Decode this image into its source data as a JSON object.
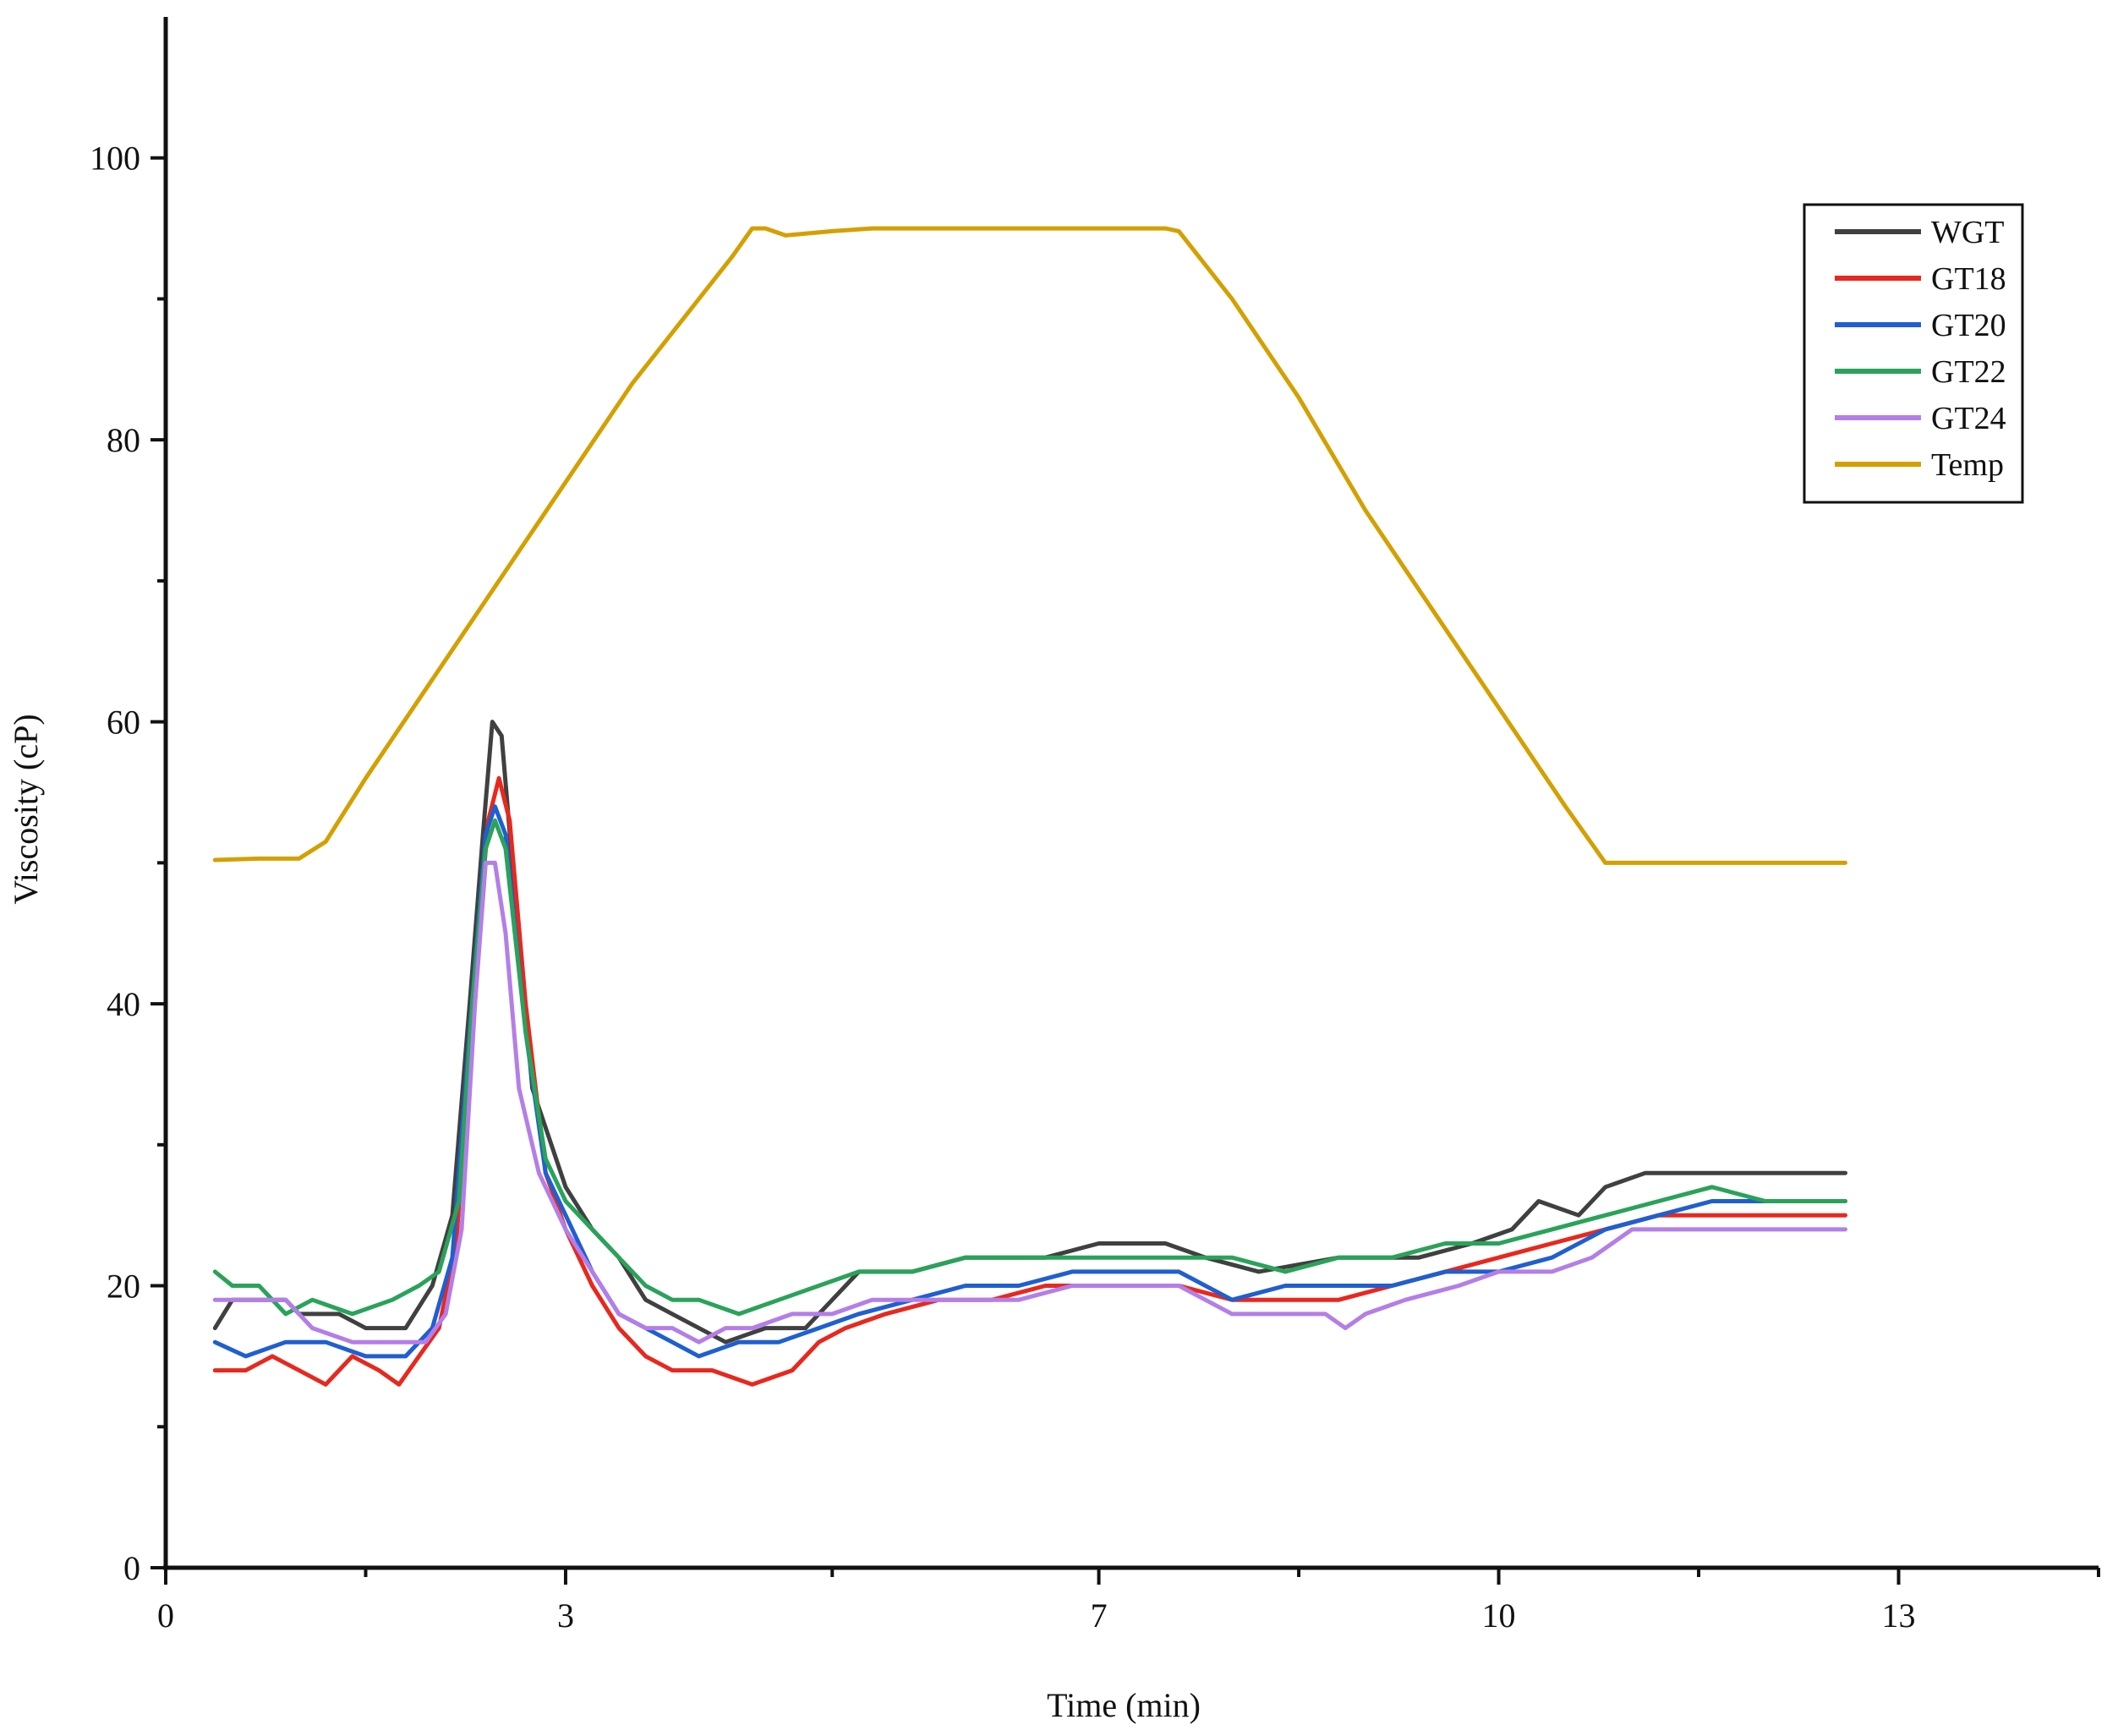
{
  "chart_data": {
    "type": "line",
    "xlabel": "Time (min)",
    "ylabel": "Viscosity (cP)",
    "xlim": [
      0,
      14.5
    ],
    "ylim": [
      0,
      110
    ],
    "x_ticks": [
      0,
      3,
      7,
      10,
      13
    ],
    "x_tick_labels": [
      "0",
      "3",
      "7",
      "10",
      "13"
    ],
    "y_ticks": [
      0,
      20,
      40,
      60,
      80,
      100
    ],
    "y_tick_labels": [
      "0",
      "20",
      "40",
      "60",
      "80",
      "100"
    ],
    "grid": false,
    "legend_position": "top-right",
    "series": [
      {
        "name": "WGT",
        "color": "#404040",
        "points": [
          [
            0.37,
            17
          ],
          [
            0.5,
            19
          ],
          [
            0.9,
            19
          ],
          [
            1.0,
            18
          ],
          [
            1.3,
            18
          ],
          [
            1.5,
            17
          ],
          [
            1.8,
            17
          ],
          [
            2.0,
            20
          ],
          [
            2.15,
            25
          ],
          [
            2.28,
            40
          ],
          [
            2.38,
            52
          ],
          [
            2.45,
            60
          ],
          [
            2.52,
            59
          ],
          [
            2.6,
            50
          ],
          [
            2.75,
            34
          ],
          [
            3.0,
            27
          ],
          [
            3.2,
            24
          ],
          [
            3.4,
            22
          ],
          [
            3.6,
            19
          ],
          [
            3.8,
            18
          ],
          [
            4.0,
            17
          ],
          [
            4.2,
            16
          ],
          [
            4.5,
            17
          ],
          [
            4.8,
            17
          ],
          [
            5.0,
            19
          ],
          [
            5.2,
            21
          ],
          [
            5.6,
            21
          ],
          [
            6.0,
            22
          ],
          [
            6.6,
            22
          ],
          [
            7.0,
            23
          ],
          [
            7.5,
            23
          ],
          [
            7.8,
            22
          ],
          [
            8.2,
            21
          ],
          [
            8.8,
            22
          ],
          [
            9.4,
            22
          ],
          [
            9.8,
            23
          ],
          [
            10.1,
            24
          ],
          [
            10.3,
            26
          ],
          [
            10.6,
            25
          ],
          [
            10.8,
            27
          ],
          [
            11.1,
            28
          ],
          [
            11.5,
            28
          ],
          [
            12.0,
            28
          ],
          [
            12.4,
            28
          ],
          [
            12.6,
            28
          ]
        ]
      },
      {
        "name": "GT18",
        "color": "#e8281e",
        "points": [
          [
            0.37,
            14
          ],
          [
            0.6,
            14
          ],
          [
            0.8,
            15
          ],
          [
            1.0,
            14
          ],
          [
            1.2,
            13
          ],
          [
            1.4,
            15
          ],
          [
            1.6,
            14
          ],
          [
            1.75,
            13
          ],
          [
            1.9,
            15
          ],
          [
            2.05,
            17
          ],
          [
            2.18,
            23
          ],
          [
            2.3,
            40
          ],
          [
            2.42,
            53
          ],
          [
            2.5,
            56
          ],
          [
            2.58,
            53
          ],
          [
            2.7,
            40
          ],
          [
            2.85,
            28
          ],
          [
            3.0,
            24
          ],
          [
            3.2,
            20
          ],
          [
            3.4,
            17
          ],
          [
            3.6,
            15
          ],
          [
            3.8,
            14
          ],
          [
            4.1,
            14
          ],
          [
            4.4,
            13
          ],
          [
            4.7,
            14
          ],
          [
            4.9,
            16
          ],
          [
            5.1,
            17
          ],
          [
            5.4,
            18
          ],
          [
            5.8,
            19
          ],
          [
            6.2,
            19
          ],
          [
            6.6,
            20
          ],
          [
            7.0,
            20
          ],
          [
            7.6,
            20
          ],
          [
            8.0,
            19
          ],
          [
            8.4,
            19
          ],
          [
            8.8,
            19
          ],
          [
            9.2,
            20
          ],
          [
            9.6,
            21
          ],
          [
            10.0,
            22
          ],
          [
            10.4,
            23
          ],
          [
            10.8,
            24
          ],
          [
            11.2,
            25
          ],
          [
            11.6,
            25
          ],
          [
            12.0,
            25
          ],
          [
            12.4,
            25
          ],
          [
            12.6,
            25
          ]
        ]
      },
      {
        "name": "GT20",
        "color": "#1f5fd1",
        "points": [
          [
            0.37,
            16
          ],
          [
            0.6,
            15
          ],
          [
            0.9,
            16
          ],
          [
            1.2,
            16
          ],
          [
            1.5,
            15
          ],
          [
            1.8,
            15
          ],
          [
            2.0,
            17
          ],
          [
            2.15,
            22
          ],
          [
            2.28,
            38
          ],
          [
            2.4,
            52
          ],
          [
            2.47,
            54
          ],
          [
            2.55,
            52
          ],
          [
            2.7,
            38
          ],
          [
            2.85,
            28
          ],
          [
            3.0,
            25
          ],
          [
            3.2,
            21
          ],
          [
            3.4,
            18
          ],
          [
            3.6,
            17
          ],
          [
            3.8,
            16
          ],
          [
            4.0,
            15
          ],
          [
            4.3,
            16
          ],
          [
            4.6,
            16
          ],
          [
            4.9,
            17
          ],
          [
            5.2,
            18
          ],
          [
            5.6,
            19
          ],
          [
            6.0,
            20
          ],
          [
            6.4,
            20
          ],
          [
            6.8,
            21
          ],
          [
            7.2,
            21
          ],
          [
            7.6,
            21
          ],
          [
            8.0,
            19
          ],
          [
            8.4,
            20
          ],
          [
            8.8,
            20
          ],
          [
            9.2,
            20
          ],
          [
            9.6,
            21
          ],
          [
            10.0,
            21
          ],
          [
            10.4,
            22
          ],
          [
            10.8,
            24
          ],
          [
            11.2,
            25
          ],
          [
            11.6,
            26
          ],
          [
            12.0,
            26
          ],
          [
            12.4,
            26
          ],
          [
            12.6,
            26
          ]
        ]
      },
      {
        "name": "GT22",
        "color": "#2aa35a",
        "points": [
          [
            0.37,
            21
          ],
          [
            0.5,
            20
          ],
          [
            0.7,
            20
          ],
          [
            0.9,
            18
          ],
          [
            1.1,
            19
          ],
          [
            1.4,
            18
          ],
          [
            1.7,
            19
          ],
          [
            1.9,
            20
          ],
          [
            2.05,
            21
          ],
          [
            2.2,
            26
          ],
          [
            2.3,
            40
          ],
          [
            2.4,
            51
          ],
          [
            2.47,
            53
          ],
          [
            2.55,
            51
          ],
          [
            2.7,
            38
          ],
          [
            2.85,
            29
          ],
          [
            3.0,
            26
          ],
          [
            3.2,
            24
          ],
          [
            3.4,
            22
          ],
          [
            3.6,
            20
          ],
          [
            3.8,
            19
          ],
          [
            4.0,
            19
          ],
          [
            4.3,
            18
          ],
          [
            4.6,
            19
          ],
          [
            4.9,
            20
          ],
          [
            5.2,
            21
          ],
          [
            5.6,
            21
          ],
          [
            6.0,
            22
          ],
          [
            6.4,
            22
          ],
          [
            6.8,
            22
          ],
          [
            7.2,
            22
          ],
          [
            7.6,
            22
          ],
          [
            8.0,
            22
          ],
          [
            8.4,
            21
          ],
          [
            8.8,
            22
          ],
          [
            9.2,
            22
          ],
          [
            9.6,
            23
          ],
          [
            10.0,
            23
          ],
          [
            10.4,
            24
          ],
          [
            10.8,
            25
          ],
          [
            11.2,
            26
          ],
          [
            11.6,
            27
          ],
          [
            12.0,
            26
          ],
          [
            12.4,
            26
          ],
          [
            12.6,
            26
          ]
        ]
      },
      {
        "name": "GT24",
        "color": "#b47ee8",
        "points": [
          [
            0.37,
            19
          ],
          [
            0.6,
            19
          ],
          [
            0.9,
            19
          ],
          [
            1.1,
            17
          ],
          [
            1.4,
            16
          ],
          [
            1.7,
            16
          ],
          [
            1.95,
            16
          ],
          [
            2.1,
            18
          ],
          [
            2.22,
            24
          ],
          [
            2.32,
            40
          ],
          [
            2.4,
            50
          ],
          [
            2.47,
            50
          ],
          [
            2.55,
            45
          ],
          [
            2.65,
            34
          ],
          [
            2.8,
            28
          ],
          [
            3.0,
            24
          ],
          [
            3.2,
            21
          ],
          [
            3.4,
            18
          ],
          [
            3.6,
            17
          ],
          [
            3.8,
            17
          ],
          [
            4.0,
            16
          ],
          [
            4.2,
            17
          ],
          [
            4.4,
            17
          ],
          [
            4.7,
            18
          ],
          [
            5.0,
            18
          ],
          [
            5.3,
            19
          ],
          [
            5.7,
            19
          ],
          [
            6.0,
            19
          ],
          [
            6.4,
            19
          ],
          [
            6.8,
            20
          ],
          [
            7.2,
            20
          ],
          [
            7.6,
            20
          ],
          [
            8.0,
            18
          ],
          [
            8.4,
            18
          ],
          [
            8.7,
            18
          ],
          [
            8.85,
            17
          ],
          [
            9.0,
            18
          ],
          [
            9.3,
            19
          ],
          [
            9.7,
            20
          ],
          [
            10.0,
            21
          ],
          [
            10.4,
            21
          ],
          [
            10.7,
            22
          ],
          [
            11.0,
            24
          ],
          [
            11.4,
            24
          ],
          [
            11.8,
            24
          ],
          [
            12.2,
            24
          ],
          [
            12.6,
            24
          ]
        ]
      },
      {
        "name": "Temp",
        "color": "#d4a000",
        "points": [
          [
            0.37,
            50.2
          ],
          [
            0.7,
            50.3
          ],
          [
            1.0,
            50.3
          ],
          [
            1.2,
            51.5
          ],
          [
            1.5,
            56
          ],
          [
            2.0,
            63
          ],
          [
            2.5,
            70
          ],
          [
            3.0,
            77
          ],
          [
            3.5,
            84
          ],
          [
            4.0,
            90
          ],
          [
            4.25,
            93
          ],
          [
            4.4,
            95
          ],
          [
            4.5,
            95
          ],
          [
            4.65,
            94.5
          ],
          [
            5.0,
            94.8
          ],
          [
            5.3,
            95
          ],
          [
            6.0,
            95
          ],
          [
            6.8,
            95
          ],
          [
            7.5,
            95
          ],
          [
            7.6,
            94.8
          ],
          [
            8.0,
            90
          ],
          [
            8.5,
            83
          ],
          [
            9.0,
            75
          ],
          [
            9.5,
            68
          ],
          [
            10.0,
            61
          ],
          [
            10.5,
            54
          ],
          [
            10.8,
            50
          ],
          [
            11.0,
            50
          ],
          [
            11.5,
            50
          ],
          [
            12.0,
            50
          ],
          [
            12.5,
            50
          ],
          [
            12.6,
            50
          ]
        ]
      }
    ]
  }
}
